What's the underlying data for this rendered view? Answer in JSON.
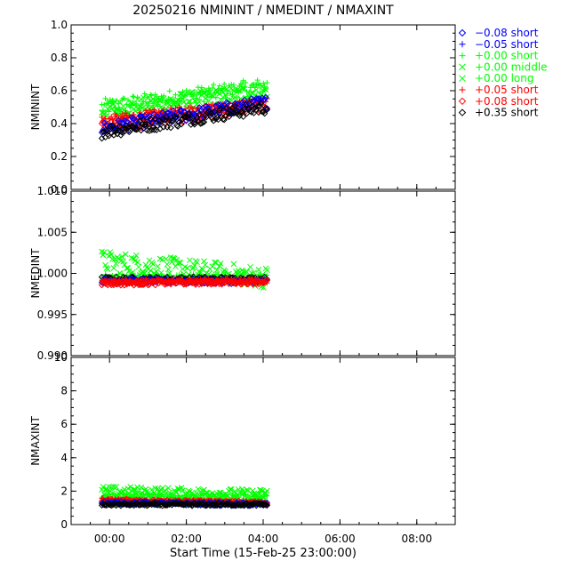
{
  "chart_data": {
    "type": "scatter",
    "title": "20250216 NMININT  /  NMEDINT  /  NMAXINT",
    "xlabel": "Start Time (15-Feb-25 23:00:00)",
    "x_range_hours": [
      -1.0,
      9.0
    ],
    "x_ticks": [
      0,
      2,
      4,
      6,
      8
    ],
    "x_tick_labels": [
      "00:00",
      "02:00",
      "04:00",
      "06:00",
      "08:00"
    ],
    "x_unit": "hours after 00:00 on 16-Feb-25",
    "legend_position": "right",
    "legend": [
      {
        "label": "−0.08 short",
        "color": "#0000ff",
        "marker": "diamond"
      },
      {
        "label": "−0.05 short",
        "color": "#0000ff",
        "marker": "plus"
      },
      {
        "label": "+0.00 short",
        "color": "#00ff00",
        "marker": "plus"
      },
      {
        "label": "+0.00 middle",
        "color": "#00ff00",
        "marker": "cross"
      },
      {
        "label": "+0.00 long",
        "color": "#00ff00",
        "marker": "cross"
      },
      {
        "label": "+0.05 short",
        "color": "#ff0000",
        "marker": "plus"
      },
      {
        "label": "+0.08 short",
        "color": "#ff0000",
        "marker": "diamond"
      },
      {
        "label": "+0.35 short",
        "color": "#000000",
        "marker": "diamond"
      }
    ],
    "panels": [
      {
        "ylabel": "NMININT",
        "ylim": [
          0.0,
          1.0
        ],
        "y_ticks": [
          0.0,
          0.2,
          0.4,
          0.6,
          0.8,
          1.0
        ],
        "y_tick_labels": [
          "0.0",
          "0.2",
          "0.4",
          "0.6",
          "0.8",
          "1.0"
        ],
        "series": [
          {
            "name": "+0.00 short",
            "color": "#00ff00",
            "marker": "plus",
            "t_start": -0.2,
            "t_end": 4.1,
            "y_start": 0.5,
            "y_end": 0.63,
            "spread": 0.05
          },
          {
            "name": "+0.00 middle",
            "color": "#00ff00",
            "marker": "cross",
            "t_start": -0.2,
            "t_end": 4.1,
            "y_start": 0.48,
            "y_end": 0.6,
            "spread": 0.05
          },
          {
            "name": "+0.05 short",
            "color": "#ff0000",
            "marker": "plus",
            "t_start": -0.2,
            "t_end": 4.1,
            "y_start": 0.42,
            "y_end": 0.53,
            "spread": 0.03
          },
          {
            "name": "+0.08 short",
            "color": "#ff0000",
            "marker": "diamond",
            "t_start": -0.2,
            "t_end": 4.1,
            "y_start": 0.38,
            "y_end": 0.52,
            "spread": 0.04
          },
          {
            "name": "−0.08 short",
            "color": "#0000ff",
            "marker": "diamond",
            "t_start": -0.2,
            "t_end": 4.1,
            "y_start": 0.37,
            "y_end": 0.53,
            "spread": 0.04
          },
          {
            "name": "+0.35 short",
            "color": "#000000",
            "marker": "diamond",
            "t_start": -0.2,
            "t_end": 4.1,
            "y_start": 0.35,
            "y_end": 0.5,
            "spread": 0.04
          }
        ]
      },
      {
        "ylabel": "NMEDINT",
        "ylim": [
          0.99,
          1.01
        ],
        "y_ticks": [
          0.99,
          0.995,
          1.0,
          1.005,
          1.01
        ],
        "y_tick_labels": [
          "0.990",
          "0.995",
          "1.000",
          "1.005",
          "1.010"
        ],
        "series": [
          {
            "name": "+0.00 middle",
            "color": "#00ff00",
            "marker": "cross",
            "t_start": -0.2,
            "t_end": 4.1,
            "y_start": 1.0015,
            "y_end": 0.9995,
            "spread": 0.0013
          },
          {
            "name": "+0.00 short",
            "color": "#00ff00",
            "marker": "plus",
            "t_start": -0.2,
            "t_end": 4.1,
            "y_start": 0.9995,
            "y_end": 0.9994,
            "spread": 0.0005
          },
          {
            "name": "+0.35 short",
            "color": "#000000",
            "marker": "diamond",
            "t_start": -0.2,
            "t_end": 4.1,
            "y_start": 0.9993,
            "y_end": 0.9993,
            "spread": 0.0003
          },
          {
            "name": "−0.08 short",
            "color": "#0000ff",
            "marker": "diamond",
            "t_start": -0.2,
            "t_end": 4.1,
            "y_start": 0.9991,
            "y_end": 0.999,
            "spread": 0.0003
          },
          {
            "name": "+0.05 short",
            "color": "#ff0000",
            "marker": "plus",
            "t_start": -0.2,
            "t_end": 4.1,
            "y_start": 0.999,
            "y_end": 0.9991,
            "spread": 0.0003
          },
          {
            "name": "+0.08 short",
            "color": "#ff0000",
            "marker": "diamond",
            "t_start": -0.2,
            "t_end": 4.1,
            "y_start": 0.9988,
            "y_end": 0.999,
            "spread": 0.0003
          }
        ]
      },
      {
        "ylabel": "NMAXINT",
        "ylim": [
          0,
          10
        ],
        "y_ticks": [
          0,
          2,
          4,
          6,
          8,
          10
        ],
        "y_tick_labels": [
          "0",
          "2",
          "4",
          "6",
          "8",
          "10"
        ],
        "series": [
          {
            "name": "+0.00 middle",
            "color": "#00ff00",
            "marker": "cross",
            "t_start": -0.2,
            "t_end": 4.1,
            "y_start": 2.0,
            "y_end": 1.8,
            "spread": 0.3
          },
          {
            "name": "+0.00 short",
            "color": "#00ff00",
            "marker": "plus",
            "t_start": -0.2,
            "t_end": 4.1,
            "y_start": 1.7,
            "y_end": 1.6,
            "spread": 0.2
          },
          {
            "name": "+0.05 short",
            "color": "#ff0000",
            "marker": "plus",
            "t_start": -0.2,
            "t_end": 4.1,
            "y_start": 1.5,
            "y_end": 1.3,
            "spread": 0.1
          },
          {
            "name": "+0.08 short",
            "color": "#ff0000",
            "marker": "diamond",
            "t_start": -0.2,
            "t_end": 4.1,
            "y_start": 1.4,
            "y_end": 1.3,
            "spread": 0.1
          },
          {
            "name": "−0.08 short",
            "color": "#0000ff",
            "marker": "diamond",
            "t_start": -0.2,
            "t_end": 4.1,
            "y_start": 1.3,
            "y_end": 1.2,
            "spread": 0.1
          },
          {
            "name": "+0.35 short",
            "color": "#000000",
            "marker": "diamond",
            "t_start": -0.2,
            "t_end": 4.1,
            "y_start": 1.2,
            "y_end": 1.2,
            "spread": 0.08
          }
        ]
      }
    ]
  }
}
